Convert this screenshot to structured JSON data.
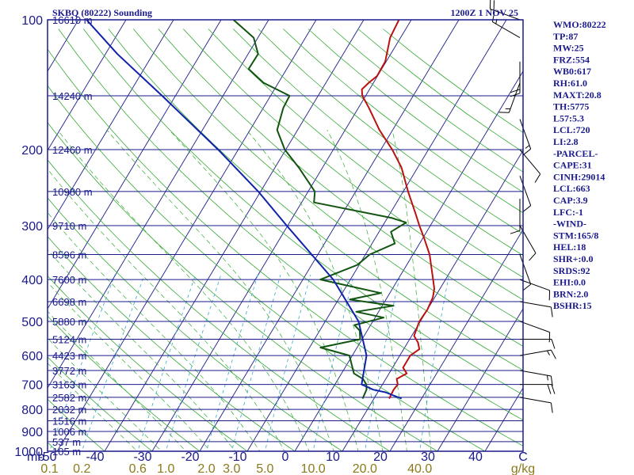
{
  "header": {
    "station": "SKBQ (80222) Sounding",
    "time": "1200Z  1 NOV 25"
  },
  "indices": [
    "WMO:80222",
    "TP:87",
    "MW:25",
    "FRZ:554",
    "WB0:617",
    "RH:61.0",
    "MAXT:20.8",
    "TH:5775",
    "L57:5.3",
    "LCL:720",
    "LI:2.8",
    "-PARCEL-",
    "CAPE:31",
    "CINH:29014",
    "LCL:663",
    "CAP:3.9",
    "LFC:-1",
    "-WIND-",
    "STM:165/8",
    "HEL:18",
    "SHR+:0.0",
    "SRDS:92",
    "EHI:0.0",
    "BRN:2.0",
    "BSHR:15"
  ],
  "colors": {
    "frame": "#1a1a8c",
    "isobar": "#1a1a8c",
    "isotherm": "#1a1a8c",
    "dry_adiabat": "#33aa33",
    "moist_adiabat": "#33aa33",
    "mixing_ratio": "#33aacc",
    "temperature": "#bb1111",
    "dewpoint": "#115511",
    "parcel": "#1122aa",
    "wind": "#000000",
    "mixing_label": "#8a7a1a"
  },
  "chart_data": {
    "type": "line",
    "title": "SKBQ (80222) Sounding",
    "subtitle": "1200Z  1 NOV 25",
    "y_axis": {
      "label": "mb",
      "scale": "log",
      "range": [
        1000,
        100
      ],
      "ticks": [
        100,
        200,
        300,
        400,
        500,
        600,
        700,
        800,
        900,
        1000
      ]
    },
    "x_axis": {
      "label": "C",
      "range": [
        -50,
        50
      ],
      "ticks": [
        -50,
        -40,
        -30,
        -20,
        -10,
        0,
        10,
        20,
        30,
        40
      ]
    },
    "mixing_ratio_labels": [
      "0.1",
      "0.2",
      "0.6",
      "1.0",
      "2.0",
      "3.0",
      "5.0",
      "10.0",
      "20.0",
      "40.0"
    ],
    "mixing_ratio_unit": "g/kg",
    "height_labels": [
      {
        "p": 100,
        "label": "16610 m"
      },
      {
        "p": 150,
        "label": "14240 m"
      },
      {
        "p": 200,
        "label": "12460 m"
      },
      {
        "p": 250,
        "label": "10980 m"
      },
      {
        "p": 300,
        "label": "9710 m"
      },
      {
        "p": 350,
        "label": "8596 m"
      },
      {
        "p": 400,
        "label": "7600 m"
      },
      {
        "p": 450,
        "label": "6698 m"
      },
      {
        "p": 500,
        "label": "5880 m"
      },
      {
        "p": 550,
        "label": "5124 m"
      },
      {
        "p": 600,
        "label": "4423 m"
      },
      {
        "p": 650,
        "label": "3772 m"
      },
      {
        "p": 700,
        "label": "3163 m"
      },
      {
        "p": 750,
        "label": "2582 m"
      },
      {
        "p": 800,
        "label": "2032 m"
      },
      {
        "p": 850,
        "label": "1516 m"
      },
      {
        "p": 900,
        "label": "1006 m"
      },
      {
        "p": 950,
        "label": "537 m"
      },
      {
        "p": 1000,
        "label": "105 m"
      }
    ],
    "series": [
      {
        "name": "temperature",
        "points": [
          {
            "p": 755,
            "t": 23.2
          },
          {
            "p": 720,
            "t": 23.0
          },
          {
            "p": 700,
            "t": 23.2
          },
          {
            "p": 680,
            "t": 22.3
          },
          {
            "p": 660,
            "t": 23.7
          },
          {
            "p": 640,
            "t": 22.2
          },
          {
            "p": 600,
            "t": 22.2
          },
          {
            "p": 580,
            "t": 23.3
          },
          {
            "p": 560,
            "t": 22.2
          },
          {
            "p": 540,
            "t": 20.5
          },
          {
            "p": 500,
            "t": 19.8
          },
          {
            "p": 470,
            "t": 20.0
          },
          {
            "p": 440,
            "t": 19.6
          },
          {
            "p": 420,
            "t": 18.8
          },
          {
            "p": 400,
            "t": 17.4
          },
          {
            "p": 380,
            "t": 15.9
          },
          {
            "p": 350,
            "t": 13.5
          },
          {
            "p": 320,
            "t": 10.2
          },
          {
            "p": 300,
            "t": 7.7
          },
          {
            "p": 280,
            "t": 5.2
          },
          {
            "p": 250,
            "t": 1.0
          },
          {
            "p": 220,
            "t": -3.4
          },
          {
            "p": 200,
            "t": -7.6
          },
          {
            "p": 180,
            "t": -12.8
          },
          {
            "p": 160,
            "t": -17.8
          },
          {
            "p": 150,
            "t": -20.7
          },
          {
            "p": 145,
            "t": -21.6
          },
          {
            "p": 140,
            "t": -21.0
          },
          {
            "p": 135,
            "t": -20.1
          },
          {
            "p": 125,
            "t": -20.2
          },
          {
            "p": 110,
            "t": -22.2
          },
          {
            "p": 100,
            "t": -22.6
          }
        ]
      },
      {
        "name": "dewpoint",
        "points": [
          {
            "p": 755,
            "t": 17.6
          },
          {
            "p": 720,
            "t": 17.3
          },
          {
            "p": 700,
            "t": 16.6
          },
          {
            "p": 680,
            "t": 15.2
          },
          {
            "p": 660,
            "t": 12.6
          },
          {
            "p": 600,
            "t": 9.4
          },
          {
            "p": 575,
            "t": 2.3
          },
          {
            "p": 550,
            "t": 9.6
          },
          {
            "p": 525,
            "t": 8.4
          },
          {
            "p": 510,
            "t": 6.6
          },
          {
            "p": 490,
            "t": 11.8
          },
          {
            "p": 475,
            "t": 5.3
          },
          {
            "p": 460,
            "t": 12.4
          },
          {
            "p": 445,
            "t": 2.4
          },
          {
            "p": 430,
            "t": 8.1
          },
          {
            "p": 400,
            "t": -6.3
          },
          {
            "p": 370,
            "t": -0.4
          },
          {
            "p": 350,
            "t": 0.9
          },
          {
            "p": 330,
            "t": 4.8
          },
          {
            "p": 310,
            "t": 2.5
          },
          {
            "p": 295,
            "t": 4.5
          },
          {
            "p": 288,
            "t": 1.0
          },
          {
            "p": 265,
            "t": -17.4
          },
          {
            "p": 250,
            "t": -18.6
          },
          {
            "p": 220,
            "t": -25.0
          },
          {
            "p": 200,
            "t": -30.2
          },
          {
            "p": 180,
            "t": -34.3
          },
          {
            "p": 160,
            "t": -35.8
          },
          {
            "p": 150,
            "t": -36.0
          },
          {
            "p": 140,
            "t": -43.1
          },
          {
            "p": 130,
            "t": -48.0
          },
          {
            "p": 120,
            "t": -47.9
          },
          {
            "p": 110,
            "t": -50.9
          },
          {
            "p": 100,
            "t": -57.4
          }
        ]
      },
      {
        "name": "parcel",
        "points": [
          {
            "p": 755,
            "t": 25.8
          },
          {
            "p": 730,
            "t": 21.6
          },
          {
            "p": 720,
            "t": 18.7
          },
          {
            "p": 700,
            "t": 15.6
          },
          {
            "p": 600,
            "t": 13.0
          },
          {
            "p": 500,
            "t": 7.0
          },
          {
            "p": 400,
            "t": -3.6
          },
          {
            "p": 300,
            "t": -20.2
          },
          {
            "p": 250,
            "t": -30.5
          },
          {
            "p": 200,
            "t": -44.2
          },
          {
            "p": 150,
            "t": -62.8
          },
          {
            "p": 120,
            "t": -77.5
          },
          {
            "p": 100,
            "t": -88.3
          }
        ]
      }
    ],
    "wind_barbs": [
      {
        "p": 100,
        "dir": 290,
        "spd": 20
      },
      {
        "p": 110,
        "dir": 300,
        "spd": 15
      },
      {
        "p": 125,
        "dir": 180,
        "spd": 20
      },
      {
        "p": 140,
        "dir": 200,
        "spd": 15
      },
      {
        "p": 170,
        "dir": 160,
        "spd": 15
      },
      {
        "p": 200,
        "dir": 140,
        "spd": 10
      },
      {
        "p": 230,
        "dir": 160,
        "spd": 10
      },
      {
        "p": 260,
        "dir": 180,
        "spd": 10
      },
      {
        "p": 300,
        "dir": 150,
        "spd": 10
      },
      {
        "p": 350,
        "dir": 160,
        "spd": 10
      },
      {
        "p": 400,
        "dir": 110,
        "spd": 10
      },
      {
        "p": 450,
        "dir": 100,
        "spd": 10
      },
      {
        "p": 500,
        "dir": 110,
        "spd": 10
      },
      {
        "p": 550,
        "dir": 90,
        "spd": 10
      },
      {
        "p": 600,
        "dir": 80,
        "spd": 15
      },
      {
        "p": 650,
        "dir": 100,
        "spd": 15
      },
      {
        "p": 700,
        "dir": 90,
        "spd": 20
      },
      {
        "p": 750,
        "dir": 100,
        "spd": 10
      }
    ]
  }
}
